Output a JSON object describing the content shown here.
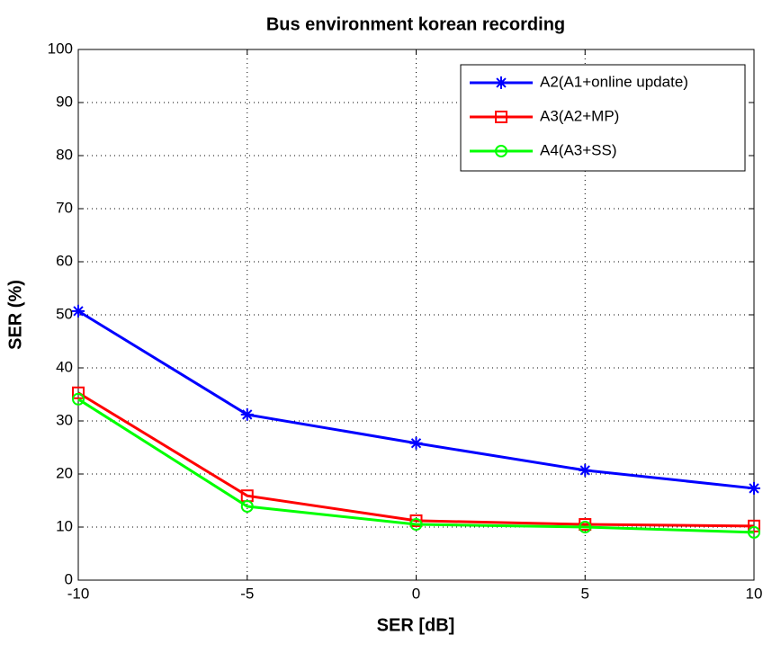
{
  "chart_data": {
    "type": "line",
    "title": "Bus environment korean recording",
    "xlabel": "SER [dB]",
    "ylabel": "SER (%)",
    "x": [
      -10,
      -5,
      0,
      5,
      10
    ],
    "series": [
      {
        "name": "A2(A1+online update)",
        "color": "#0000ff",
        "marker": "star",
        "values": [
          50.7,
          31.2,
          25.8,
          20.7,
          17.3
        ]
      },
      {
        "name": "A3(A2+MP)",
        "color": "#ff0000",
        "marker": "square",
        "values": [
          35.3,
          15.9,
          11.2,
          10.5,
          10.2
        ]
      },
      {
        "name": "A4(A3+SS)",
        "color": "#00ff00",
        "marker": "circle",
        "values": [
          34.1,
          13.9,
          10.5,
          10.0,
          9.0
        ]
      }
    ],
    "xlim": [
      -10,
      10
    ],
    "xticks": [
      -10,
      -5,
      0,
      5,
      10
    ],
    "ylim": [
      0,
      100
    ],
    "yticks": [
      0,
      10,
      20,
      30,
      40,
      50,
      60,
      70,
      80,
      90,
      100
    ],
    "grid": true,
    "legend": "upper right"
  }
}
